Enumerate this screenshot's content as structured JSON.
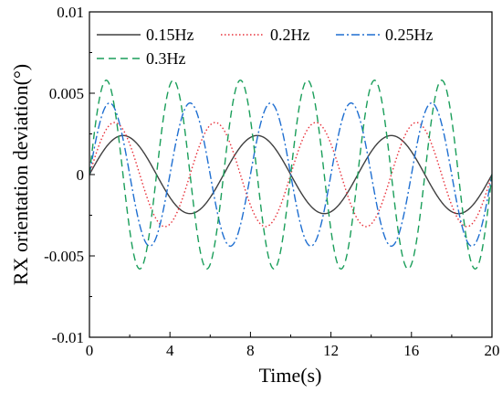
{
  "chart_data": {
    "type": "line",
    "title": "",
    "xlabel": "Time(s)",
    "ylabel": "RX orientation deviation(°)",
    "xlim": [
      0,
      20
    ],
    "ylim": [
      -0.01,
      0.01
    ],
    "x_ticks": [
      0,
      4,
      8,
      12,
      16,
      20
    ],
    "x_tick_labels": [
      "0",
      "4",
      "8",
      "12",
      "16",
      "20"
    ],
    "y_ticks": [
      -0.01,
      -0.005,
      0,
      0.005,
      0.01
    ],
    "y_tick_labels": [
      "-0.01",
      "-0.005",
      "0",
      "0.005",
      "0.01"
    ],
    "grid": false,
    "legend_position": "top",
    "series": [
      {
        "name": "0.15Hz",
        "color": "#404040",
        "dash": "solid",
        "frequency_hz": 0.15,
        "amplitude": 0.0024
      },
      {
        "name": "0.2Hz",
        "color": "#e8303a",
        "dash": "dotted",
        "frequency_hz": 0.2,
        "amplitude": 0.0032
      },
      {
        "name": "0.25Hz",
        "color": "#1f6fd1",
        "dash": "dash-dot",
        "frequency_hz": 0.25,
        "amplitude": 0.0044
      },
      {
        "name": "0.3Hz",
        "color": "#1a9e5a",
        "dash": "dashed",
        "frequency_hz": 0.3,
        "amplitude": 0.0058
      }
    ]
  }
}
